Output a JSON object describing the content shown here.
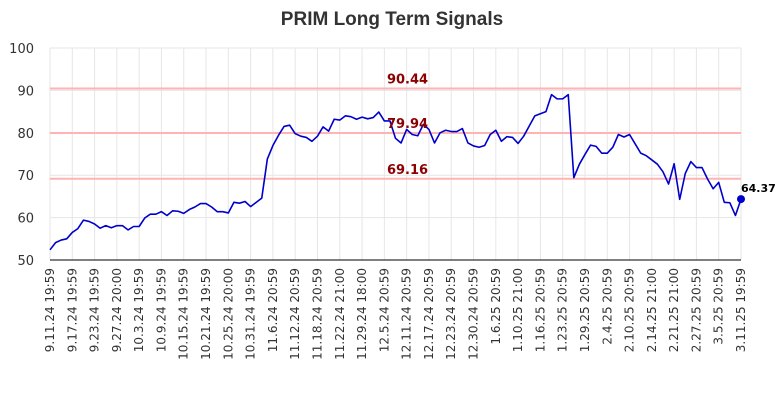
{
  "chart_data": {
    "type": "line",
    "title": "PRIM Long Term Signals",
    "xlabel": "",
    "ylabel": "",
    "ylim": [
      50,
      100
    ],
    "yticks": [
      50,
      60,
      70,
      80,
      90,
      100
    ],
    "grid": true,
    "line_color": "#0000cc",
    "hline_color": "#ffb3b3",
    "hline_label_color": "#8b0000",
    "x_tick_labels": [
      "9.11.24 19:59",
      "9.17.24 19:59",
      "9.23.24 19:59",
      "9.27.24 20:00",
      "10.3.24 19:59",
      "10.9.24 19:59",
      "10.15.24 19:59",
      "10.21.24 19:59",
      "10.25.24 20:00",
      "10.31.24 19:59",
      "11.6.24 20:59",
      "11.12.24 20:59",
      "11.18.24 20:59",
      "11.22.24 21:00",
      "11.29.24 18:00",
      "12.5.24 20:59",
      "12.11.24 20:59",
      "12.17.24 20:59",
      "12.23.24 20:59",
      "12.30.24 20:59",
      "1.6.25 20:59",
      "1.10.25 21:00",
      "1.16.25 20:59",
      "1.23.25 20:59",
      "1.29.25 20:59",
      "2.4.25 20:59",
      "2.10.25 20:59",
      "2.14.25 21:00",
      "2.21.25 21:00",
      "2.27.25 20:59",
      "3.5.25 20:59",
      "3.11.25 19:59"
    ],
    "horizontal_lines": [
      {
        "value": 90.44,
        "label": "90.44"
      },
      {
        "value": 79.94,
        "label": "79.94"
      },
      {
        "value": 69.16,
        "label": "69.16"
      }
    ],
    "last_point": {
      "value": 64.37,
      "label": "64.37"
    },
    "series": [
      {
        "values": [
          52.4,
          54.1,
          54.7,
          55.0,
          56.5,
          57.4,
          59.4,
          59.1,
          58.5,
          57.5,
          58.1,
          57.6,
          58.1,
          58.1,
          57.1,
          57.9,
          57.9,
          59.9,
          60.8,
          60.8,
          61.4,
          60.5,
          61.6,
          61.5,
          61.0,
          61.9,
          62.5,
          63.3,
          63.3,
          62.5,
          61.4,
          61.4,
          61.1,
          63.6,
          63.4,
          63.8,
          62.6,
          63.6,
          64.6,
          73.8,
          77.0,
          79.4,
          81.5,
          81.8,
          79.8,
          79.2,
          78.9,
          78.0,
          79.2,
          81.4,
          80.4,
          83.2,
          83.0,
          84.0,
          83.8,
          83.2,
          83.7,
          83.3,
          83.6,
          84.9,
          82.8,
          82.8,
          78.7,
          77.6,
          80.8,
          79.6,
          79.3,
          82.0,
          80.8,
          77.6,
          80.0,
          80.6,
          80.3,
          80.3,
          81.0,
          77.6,
          76.9,
          76.6,
          77.0,
          79.6,
          80.6,
          78.0,
          79.1,
          78.9,
          77.5,
          79.2,
          81.6,
          84.0,
          84.5,
          85.0,
          89.0,
          88.0,
          88.0,
          89.0,
          69.4,
          72.6,
          74.9,
          77.1,
          76.8,
          75.2,
          75.2,
          76.6,
          79.6,
          79.0,
          79.6,
          77.4,
          75.2,
          74.6,
          73.6,
          72.6,
          70.8,
          67.9,
          72.7,
          64.3,
          70.4,
          73.2,
          71.8,
          71.8,
          69.1,
          66.8,
          68.3,
          63.6,
          63.5,
          60.5,
          64.37
        ]
      }
    ]
  }
}
